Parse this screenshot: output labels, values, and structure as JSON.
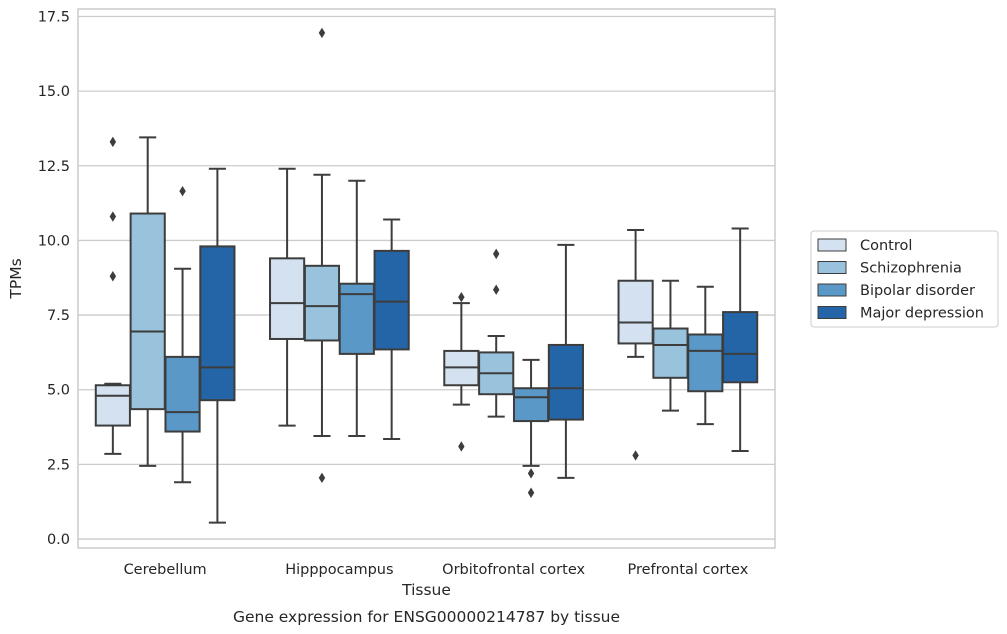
{
  "chart_data": {
    "type": "box",
    "title": "",
    "caption": "Gene expression for ENSG00000214787 by tissue",
    "xlabel": "Tissue",
    "ylabel": "TPMs",
    "ylim": [
      -0.3,
      17.75
    ],
    "yticks": [
      0.0,
      2.5,
      5.0,
      7.5,
      10.0,
      12.5,
      15.0,
      17.5
    ],
    "ytick_labels": [
      "0.0",
      "2.5",
      "5.0",
      "7.5",
      "10.0",
      "12.5",
      "15.0",
      "17.5"
    ],
    "grid": "horizontal",
    "legend_position": "outside-right",
    "categories": [
      "Cerebellum",
      "Hipppocampus",
      "Orbitofrontal cortex",
      "Prefrontal cortex"
    ],
    "series": [
      {
        "name": "Control",
        "color": "#d3e1f0",
        "boxes": [
          {
            "whislo": 2.85,
            "q1": 3.8,
            "med": 4.8,
            "q3": 5.15,
            "whishi": 5.2,
            "fliers": [
              8.8,
              10.8,
              13.3
            ]
          },
          {
            "whislo": 3.8,
            "q1": 6.7,
            "med": 7.9,
            "q3": 9.4,
            "whishi": 12.4,
            "fliers": []
          },
          {
            "whislo": 4.5,
            "q1": 5.15,
            "med": 5.75,
            "q3": 6.3,
            "whishi": 7.9,
            "fliers": [
              3.1,
              8.1
            ]
          },
          {
            "whislo": 6.1,
            "q1": 6.55,
            "med": 7.25,
            "q3": 8.65,
            "whishi": 10.35,
            "fliers": [
              2.8
            ]
          }
        ]
      },
      {
        "name": "Schizophrenia",
        "color": "#99c3dd",
        "boxes": [
          {
            "whislo": 2.45,
            "q1": 4.35,
            "med": 6.95,
            "q3": 10.9,
            "whishi": 13.45,
            "fliers": []
          },
          {
            "whislo": 3.45,
            "q1": 6.65,
            "med": 7.8,
            "q3": 9.15,
            "whishi": 12.2,
            "fliers": [
              2.05,
              16.95
            ]
          },
          {
            "whislo": 4.1,
            "q1": 4.85,
            "med": 5.55,
            "q3": 6.25,
            "whishi": 6.8,
            "fliers": [
              8.35,
              9.55
            ]
          },
          {
            "whislo": 4.3,
            "q1": 5.4,
            "med": 6.5,
            "q3": 7.05,
            "whishi": 8.65,
            "fliers": []
          }
        ]
      },
      {
        "name": "Bipolar disorder",
        "color": "#5998c7",
        "boxes": [
          {
            "whislo": 1.9,
            "q1": 3.6,
            "med": 4.25,
            "q3": 6.1,
            "whishi": 9.05,
            "fliers": [
              11.65
            ]
          },
          {
            "whislo": 3.45,
            "q1": 6.2,
            "med": 8.2,
            "q3": 8.55,
            "whishi": 12.0,
            "fliers": []
          },
          {
            "whislo": 2.45,
            "q1": 3.95,
            "med": 4.75,
            "q3": 5.05,
            "whishi": 6.0,
            "fliers": [
              1.55,
              2.2
            ]
          },
          {
            "whislo": 3.85,
            "q1": 4.95,
            "med": 6.3,
            "q3": 6.85,
            "whishi": 8.45,
            "fliers": []
          }
        ]
      },
      {
        "name": "Major depression",
        "color": "#2365a6",
        "boxes": [
          {
            "whislo": 0.55,
            "q1": 4.65,
            "med": 5.75,
            "q3": 9.8,
            "whishi": 12.4,
            "fliers": []
          },
          {
            "whislo": 3.35,
            "q1": 6.35,
            "med": 7.95,
            "q3": 9.65,
            "whishi": 10.7,
            "fliers": []
          },
          {
            "whislo": 2.05,
            "q1": 4.0,
            "med": 5.05,
            "q3": 6.5,
            "whishi": 9.85,
            "fliers": []
          },
          {
            "whislo": 2.95,
            "q1": 5.25,
            "med": 6.2,
            "q3": 7.6,
            "whishi": 10.4,
            "fliers": []
          }
        ]
      }
    ]
  }
}
